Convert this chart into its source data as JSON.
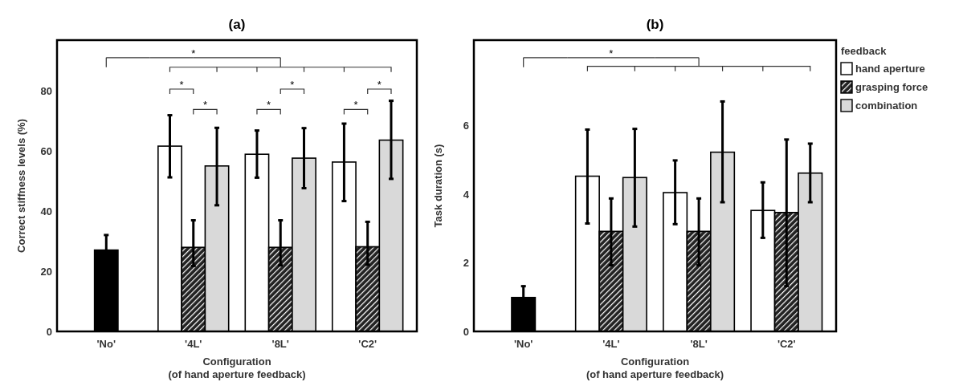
{
  "chart_data": [
    {
      "type": "bar",
      "title": "(a)",
      "xlabel": "Configuration\n(of hand aperture feedback)",
      "ylabel": "Correct stiffness levels (%)",
      "categories": [
        "'No'",
        "'4L'",
        "'8L'",
        "'C2'"
      ],
      "ylim": [
        0,
        97
      ],
      "yticks": [
        0,
        20,
        40,
        60,
        80
      ],
      "grid": false,
      "legend": false,
      "series": [
        {
          "color": "#000000",
          "values": [
            27.1,
            null,
            null,
            null
          ],
          "errors": [
            5,
            null,
            null,
            null
          ]
        },
        {
          "color": "#ffffff",
          "values": [
            null,
            61.7,
            59.0,
            56.4
          ],
          "errors": [
            null,
            [
              51.3,
              72.0
            ],
            [
              51.2,
              66.9
            ],
            [
              43.4,
              69.2
            ]
          ]
        },
        {
          "color": "#222222",
          "values": [
            null,
            28.0,
            28.0,
            28.2
          ],
          "errors": [
            null,
            [
              21.8,
              37.0
            ],
            [
              22.0,
              37.0
            ],
            [
              22.2,
              36.5
            ]
          ]
        },
        {
          "color": "#d9d9d9",
          "values": [
            null,
            55.1,
            57.7,
            63.7
          ],
          "errors": [
            null,
            [
              42.0,
              67.8
            ],
            [
              47.7,
              67.7
            ],
            [
              50.8,
              76.8
            ]
          ]
        }
      ],
      "annotations": [
        "*",
        "*",
        "*",
        "*",
        "*",
        "*",
        "*"
      ]
    },
    {
      "type": "bar",
      "title": "(b)",
      "xlabel": "Configuration\n(of hand aperture feedback)",
      "ylabel": "Task duration (s)",
      "categories": [
        "'No'",
        "'4L'",
        "'8L'",
        "'C2'"
      ],
      "ylim": [
        0,
        8.5
      ],
      "yticks": [
        0,
        2,
        4,
        6
      ],
      "grid": false,
      "legend": "top right",
      "legend_title": "feedback",
      "series": [
        {
          "color": "#000000",
          "values": [
            0.99,
            null,
            null,
            null
          ],
          "errors": [
            0.33,
            null,
            null,
            null
          ]
        },
        {
          "name": "hand aperture",
          "color": "#ffffff",
          "values": [
            null,
            4.53,
            4.05,
            3.53
          ],
          "errors": [
            null,
            [
              3.15,
              5.89
            ],
            [
              3.13,
              4.99
            ],
            [
              2.73,
              4.35
            ]
          ]
        },
        {
          "name": "grasping force",
          "color": "#222222",
          "values": [
            null,
            2.92,
            2.92,
            3.47
          ],
          "errors": [
            null,
            [
              1.93,
              3.88
            ],
            [
              1.93,
              3.88
            ],
            [
              1.32,
              5.6
            ]
          ]
        },
        {
          "name": "combination",
          "color": "#d9d9d9",
          "values": [
            null,
            4.49,
            5.23,
            4.62
          ],
          "errors": [
            null,
            [
              3.06,
              5.91
            ],
            [
              3.77,
              6.71
            ],
            [
              3.77,
              5.48
            ]
          ]
        }
      ],
      "annotations": [
        "*"
      ]
    }
  ]
}
